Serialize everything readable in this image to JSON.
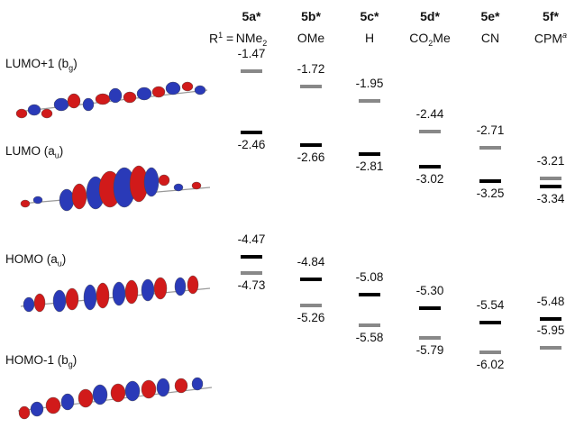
{
  "substituent_label": "R",
  "substituent_sup": "1",
  "compounds": [
    {
      "id": "5a*",
      "r_main": "NMe",
      "r_sub": "2",
      "r_tail": "",
      "r_sup": "",
      "lumo1": -1.47,
      "lumo1_t": "-1.47",
      "lumo": -2.46,
      "lumo_t": "-2.46",
      "homo": -4.47,
      "homo_t": "-4.47",
      "homo1": -4.73,
      "homo1_t": "-4.73"
    },
    {
      "id": "5b*",
      "r_main": "OMe",
      "r_sub": "",
      "r_tail": "",
      "r_sup": "",
      "lumo1": -1.72,
      "lumo1_t": "-1.72",
      "lumo": -2.66,
      "lumo_t": "-2.66",
      "homo": -4.84,
      "homo_t": "-4.84",
      "homo1": -5.26,
      "homo1_t": "-5.26"
    },
    {
      "id": "5c*",
      "r_main": "H",
      "r_sub": "",
      "r_tail": "",
      "r_sup": "",
      "lumo1": -1.95,
      "lumo1_t": "-1.95",
      "lumo": -2.81,
      "lumo_t": "-2.81",
      "homo": -5.08,
      "homo_t": "-5.08",
      "homo1": -5.58,
      "homo1_t": "-5.58"
    },
    {
      "id": "5d*",
      "r_main": "CO",
      "r_sub": "2",
      "r_tail": "Me",
      "r_sup": "",
      "lumo1": -2.44,
      "lumo1_t": "-2.44",
      "lumo": -3.02,
      "lumo_t": "-3.02",
      "homo": -5.3,
      "homo_t": "-5.30",
      "homo1": -5.79,
      "homo1_t": "-5.79"
    },
    {
      "id": "5e*",
      "r_main": "CN",
      "r_sub": "",
      "r_tail": "",
      "r_sup": "",
      "lumo1": -2.71,
      "lumo1_t": "-2.71",
      "lumo": -3.25,
      "lumo_t": "-3.25",
      "homo": -5.54,
      "homo_t": "-5.54",
      "homo1": -6.02,
      "homo1_t": "-6.02"
    },
    {
      "id": "5f*",
      "r_main": "CPM",
      "r_sub": "",
      "r_tail": "",
      "r_sup": "a",
      "lumo1": -3.21,
      "lumo1_t": "-3.21",
      "lumo": -3.34,
      "lumo_t": "-3.34",
      "homo": -5.48,
      "homo_t": "-5.48",
      "homo1": -5.95,
      "homo1_t": "-5.95"
    }
  ],
  "orbitals": [
    {
      "name": "LUMO+1",
      "sym": "g",
      "sym_letter": "b",
      "color": "#888888"
    },
    {
      "name": "LUMO",
      "sym": "u",
      "sym_letter": "a",
      "color": "#000000"
    },
    {
      "name": "HOMO",
      "sym": "u",
      "sym_letter": "a",
      "color": "#000000"
    },
    {
      "name": "HOMO-1",
      "sym": "g",
      "sym_letter": "b",
      "color": "#888888"
    }
  ],
  "colors": {
    "lobe_positive": "#d11a1a",
    "lobe_negative": "#2a3ab8",
    "black_level": "#000000",
    "gray_level": "#888888"
  }
}
